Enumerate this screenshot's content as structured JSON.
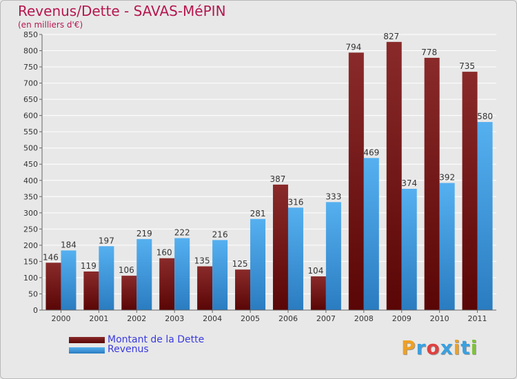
{
  "header": {
    "title": "Revenus/Dette - SAVAS-MéPIN",
    "unit": "(en milliers d'€)"
  },
  "chart_data": {
    "type": "bar",
    "title": "Revenus/Dette - SAVAS-MéPIN",
    "ylabel": "(en milliers d'€)",
    "categories": [
      "2000",
      "2001",
      "2002",
      "2003",
      "2004",
      "2005",
      "2006",
      "2007",
      "2008",
      "2009",
      "2010",
      "2011"
    ],
    "series": [
      {
        "name": "Montant de la Dette",
        "color": "#7a1a1a",
        "values": [
          146,
          119,
          106,
          160,
          135,
          125,
          387,
          104,
          794,
          827,
          778,
          735
        ]
      },
      {
        "name": "Revenus",
        "color": "#3d9be0",
        "values": [
          184,
          197,
          219,
          222,
          216,
          281,
          316,
          333,
          469,
          374,
          392,
          580
        ]
      }
    ],
    "ylim": [
      0,
      850
    ],
    "yticks": [
      0,
      50,
      100,
      150,
      200,
      250,
      300,
      350,
      400,
      450,
      500,
      550,
      600,
      650,
      700,
      750,
      800,
      850
    ],
    "grid": true,
    "legend": "bottom-left"
  },
  "logo": {
    "letters": [
      "P",
      "r",
      "o",
      "x",
      "i",
      "t",
      "i"
    ],
    "colors": [
      "#f0a020",
      "#3aa0e0",
      "#e04040",
      "#3aa0e0",
      "#f0a020",
      "#3aa0e0",
      "#80c040"
    ]
  }
}
